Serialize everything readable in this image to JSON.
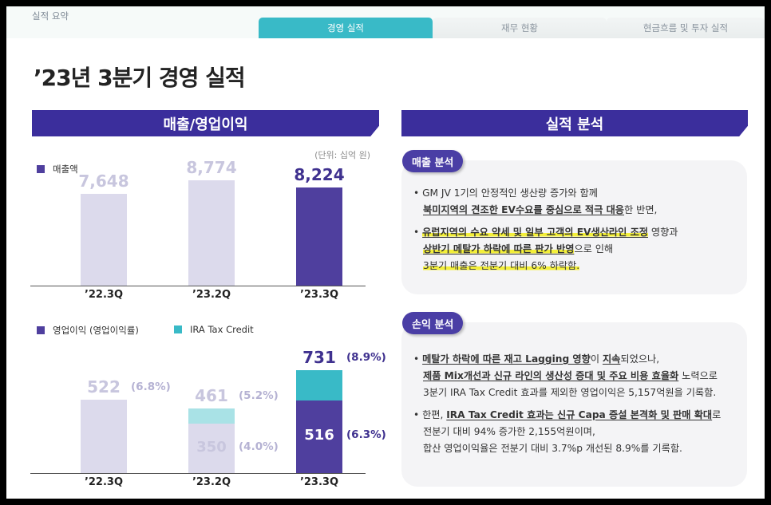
{
  "header": {
    "breadcrumb": "실적 요약",
    "tabs": [
      {
        "label": "경영 실적",
        "active": true
      },
      {
        "label": "재무 현황",
        "active": false
      },
      {
        "label": "현금흐름 및 투자 실적",
        "active": false
      }
    ]
  },
  "page_title": "’23년 3분기 경영 실적",
  "left": {
    "section_title": "매출/영업이익",
    "unit": "(단위: 십억 원)"
  },
  "right": {
    "section_title": "실적 분석",
    "sales_analysis": {
      "pill": "매출 분석",
      "bullet1_line1": "GM JV 1기의 안정적인 생산량 증가와 함께",
      "bullet1_line2_a": "북미지역의 견조한 EV수요를 중심으로 적극 대응",
      "bullet1_line2_b": "한 반면,",
      "bullet2_line1_a": "유럽지역의 수요 약세 및 일부 고객의 EV생산라인 조정",
      "bullet2_line1_b": " 영향과",
      "bullet2_line2_a": "상반기 메탈가 하락에 따른 판가 반영",
      "bullet2_line2_b": "으로 인해",
      "bullet2_line3": "3분기 매출은 전분기 대비 6% 하락함."
    },
    "pl_analysis": {
      "pill": "손익 분석",
      "bullet1_line1_a": "메탈가 하락에 따른 재고 Lagging 영향",
      "bullet1_line1_b": "이 ",
      "bullet1_line1_c": "지속",
      "bullet1_line1_d": "되었으나,",
      "bullet1_line2_a": "제품 Mix개선과 신규 라인의 생산성 증대 및 주요 비용 효율화",
      "bullet1_line2_b": " 노력으로",
      "bullet1_line3": "3분기 IRA Tax Credit 효과를 제외한 영업이익은 5,157억원을 기록함.",
      "bullet2_line1_a": "한편, ",
      "bullet2_line1_b": "IRA Tax Credit 효과는 신규 Capa 증설 본격화 및 판매 확대",
      "bullet2_line1_c": "로",
      "bullet2_line2": "전분기 대비 94% 증가한 2,155억원이며,",
      "bullet2_line3": "합산 영업이익율은 전분기 대비 3.7%p 개선된 8.9%를 기록함."
    }
  },
  "chart_data": [
    {
      "type": "bar",
      "title": "",
      "categories": [
        "’22.3Q",
        "’23.2Q",
        "’23.3Q"
      ],
      "series": [
        {
          "name": "매출액",
          "values": [
            7648,
            8774,
            8224
          ]
        }
      ],
      "value_labels": [
        "7,648",
        "8,774",
        "8,224"
      ],
      "ylim": [
        0,
        10000
      ],
      "colors": {
        "past": "#dcdaec",
        "current": "#4f3f9e",
        "past_label": "#c8c6de",
        "current_label": "#3f318f"
      }
    },
    {
      "type": "bar",
      "title": "",
      "stacked": true,
      "categories": [
        "’22.3Q",
        "’23.2Q",
        "’23.3Q"
      ],
      "series": [
        {
          "name": "영업이익 (영업이익률)",
          "values": [
            522,
            350,
            516
          ]
        },
        {
          "name": "IRA Tax Credit",
          "values": [
            0,
            111,
            215
          ]
        }
      ],
      "totals": [
        522,
        461,
        731
      ],
      "total_labels": [
        "522",
        "461",
        "731"
      ],
      "base_labels": [
        "",
        "350",
        "516"
      ],
      "total_pct": [
        "(6.8%)",
        "(5.2%)",
        "(8.9%)"
      ],
      "base_pct": [
        "",
        "(4.0%)",
        "(6.3%)"
      ],
      "ylim": [
        0,
        850
      ],
      "colors": {
        "past": "#dcdaec",
        "current": "#4f3f9e",
        "ira_past": "#a9e2e6",
        "ira_current": "#39bac7",
        "past_label": "#c8c6de",
        "current_label": "#3f318f"
      }
    }
  ]
}
